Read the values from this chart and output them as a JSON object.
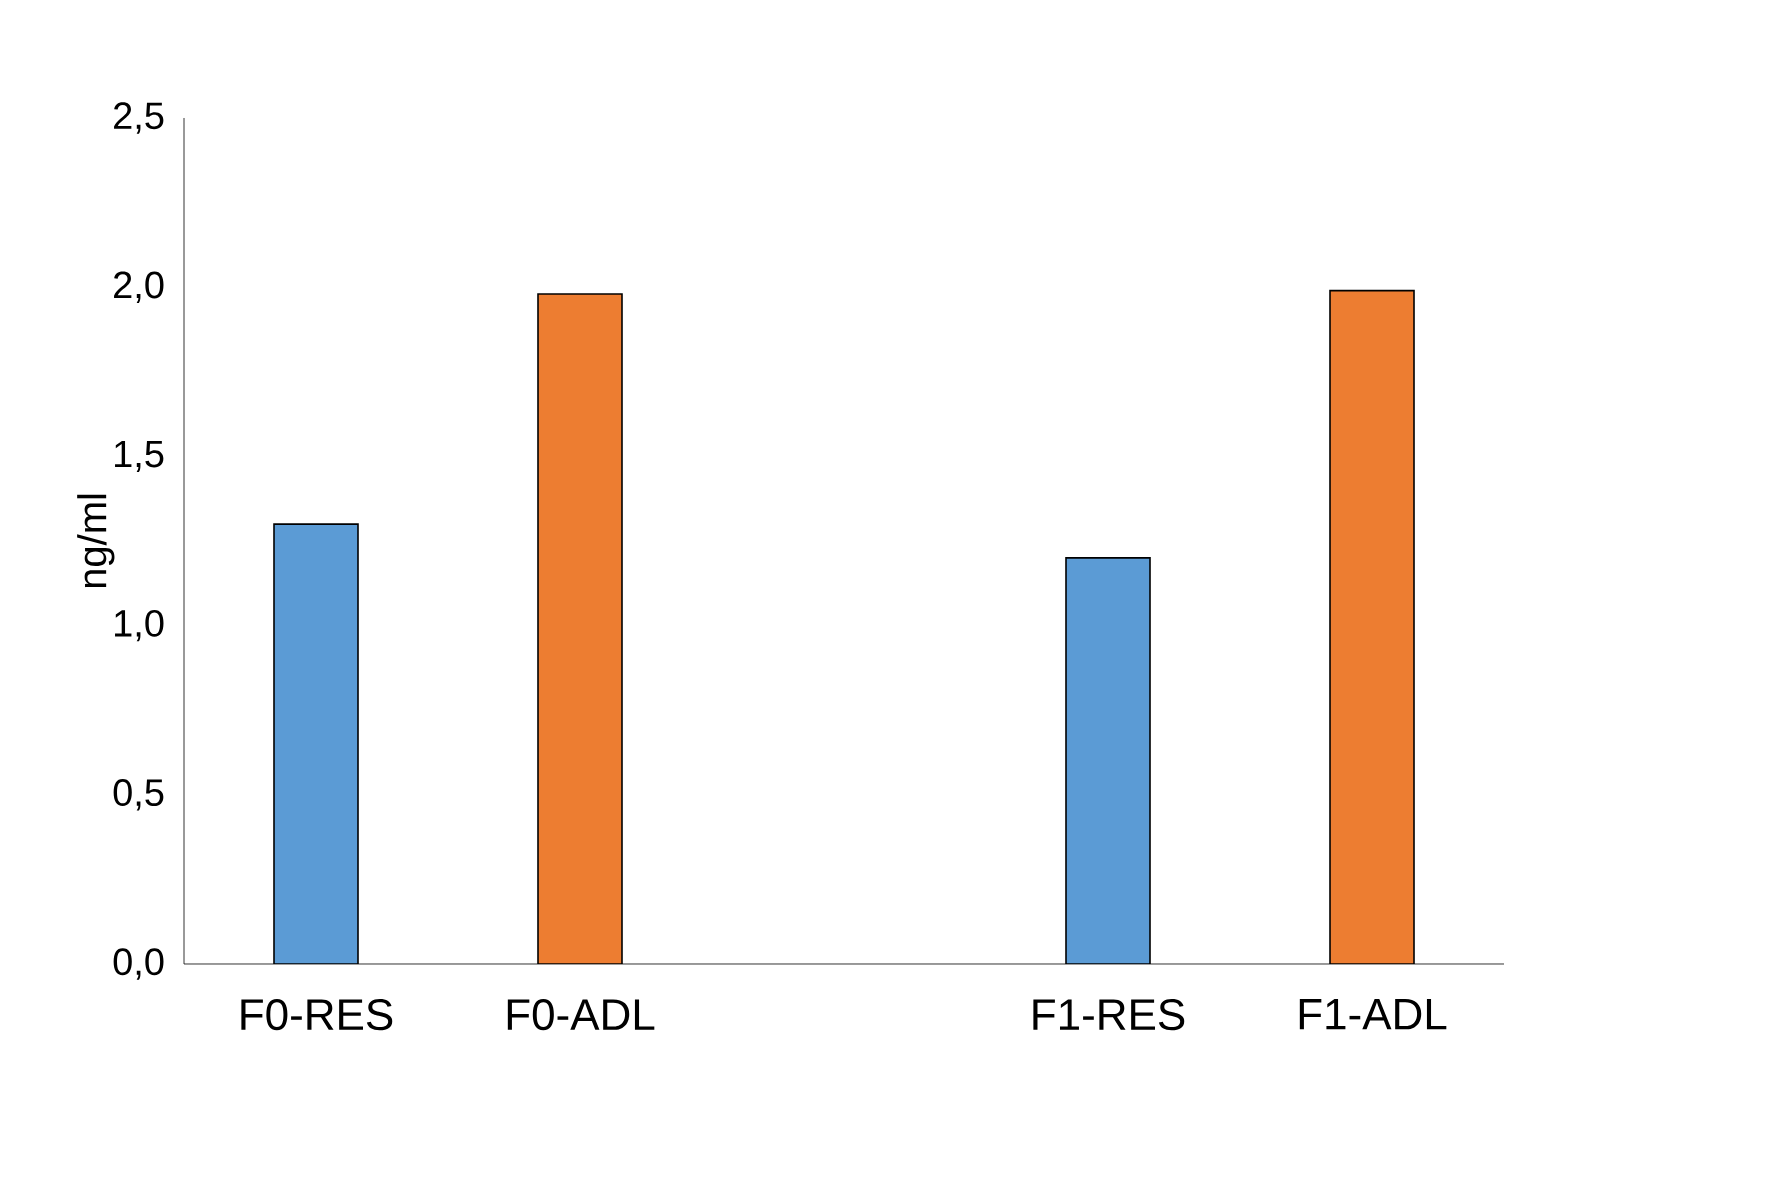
{
  "chart_data": {
    "type": "bar",
    "ylabel": "ng/ml",
    "categories": [
      "F0-RES",
      "F0-ADL",
      null,
      "F1-RES",
      "F1-ADL"
    ],
    "values": [
      1.3,
      1.98,
      null,
      1.2,
      1.99
    ],
    "colors": [
      "#5b9bd5",
      "#ed7d31",
      null,
      "#5b9bd5",
      "#ed7d31"
    ],
    "ylim": [
      0,
      2.5
    ],
    "yticks": [
      {
        "value": 0,
        "label": "0,0"
      },
      {
        "value": 0.5,
        "label": "0,5"
      },
      {
        "value": 1,
        "label": "1,0"
      },
      {
        "value": 1.5,
        "label": "1,5"
      },
      {
        "value": 2,
        "label": "2,0"
      },
      {
        "value": 2.5,
        "label": "2,5"
      }
    ],
    "grid": false
  }
}
